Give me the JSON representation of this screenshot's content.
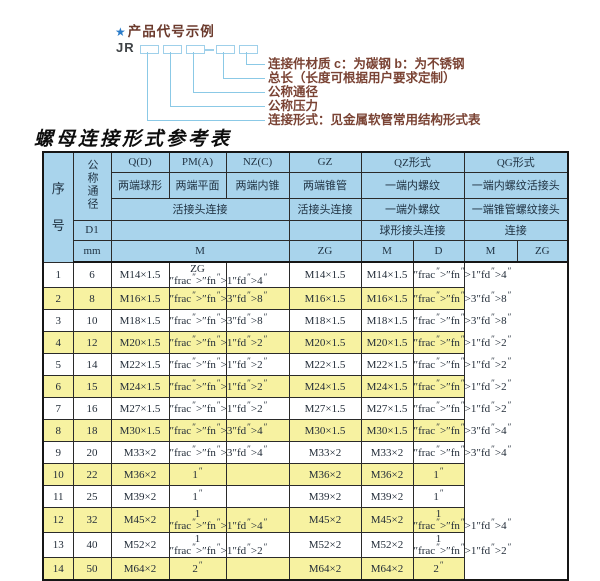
{
  "diagram": {
    "star": "★",
    "heading": "产品代号示例",
    "prefix": "JR",
    "labels": [
      "连接件材质  c：为碳钢  b：为不锈钢",
      "总长（长度可根据用户要求定制）",
      "公称通径",
      "公称压力",
      "连接形式：见金属软管常用结构形式表"
    ]
  },
  "table": {
    "title": "螺母连接形式参考表",
    "header": {
      "seq": "序号",
      "dn": "公称通径",
      "d1": "D1",
      "mm": "mm",
      "q": "Q(D)",
      "pm": "PM(A)",
      "nz": "NZ(C)",
      "gz": "GZ",
      "qz": "QZ形式",
      "qg": "QG形式",
      "q_sub": "两端球形",
      "pm_sub": "两端平面",
      "nz_sub": "两端内锥",
      "gz_sub": "两端锥管",
      "qz_sub1": "一端内螺纹",
      "qg_sub1": "一端内螺纹活接头",
      "union_conn": "活接头连接",
      "gz_conn": "活接头连接",
      "qz_sub2": "一端外螺纹",
      "qg_sub2": "一端锥管螺纹接头",
      "qz_sub3": "球形接头连接",
      "qg_sub3": "连接",
      "m_wide": "M",
      "zg_col": "ZG",
      "qz_m": "M",
      "qz_d": "D",
      "qg_m": "M",
      "qg_zg": "ZG"
    },
    "rows": [
      [
        "1",
        "6",
        "M14×1.5",
        "ZG 1/4\"",
        "",
        "M14×1.5",
        "M14×1.5",
        "1/4\""
      ],
      [
        "2",
        "8",
        "M16×1.5",
        "3/8\"",
        "",
        "M16×1.5",
        "M16×1.5",
        "3/8\""
      ],
      [
        "3",
        "10",
        "M18×1.5",
        "3/8\"",
        "",
        "M18×1.5",
        "M18×1.5",
        "3/8\""
      ],
      [
        "4",
        "12",
        "M20×1.5",
        "1/2\"",
        "",
        "M20×1.5",
        "M20×1.5",
        "1/2\""
      ],
      [
        "5",
        "14",
        "M22×1.5",
        "1/2\"",
        "",
        "M22×1.5",
        "M22×1.5",
        "1/2\""
      ],
      [
        "6",
        "15",
        "M24×1.5",
        "1/2\"",
        "",
        "M24×1.5",
        "M24×1.5",
        "1/2\""
      ],
      [
        "7",
        "16",
        "M27×1.5",
        "1/2\"",
        "",
        "M27×1.5",
        "M27×1.5",
        "1/2\""
      ],
      [
        "8",
        "18",
        "M30×1.5",
        "3/4\"",
        "",
        "M30×1.5",
        "M30×1.5",
        "3/4\""
      ],
      [
        "9",
        "20",
        "M33×2",
        "3/4\"",
        "",
        "M33×2",
        "M33×2",
        "3/4\""
      ],
      [
        "10",
        "22",
        "M36×2",
        "1\"",
        "",
        "M36×2",
        "M36×2",
        "1\""
      ],
      [
        "11",
        "25",
        "M39×2",
        "1\"",
        "",
        "M39×2",
        "M39×2",
        "1\""
      ],
      [
        "12",
        "32",
        "M45×2",
        "1 1/4\"",
        "",
        "M45×2",
        "M45×2",
        "1 1/4\""
      ],
      [
        "13",
        "40",
        "M52×2",
        "1 1/2\"",
        "",
        "M52×2",
        "M52×2",
        "1 1/2\""
      ],
      [
        "14",
        "50",
        "M64×2",
        "2\"",
        "",
        "M64×2",
        "M64×2",
        "2\""
      ]
    ]
  },
  "colors": {
    "header_bg": "#a9d4ec",
    "row_alt_bg": "#f7f2a1",
    "connector": "#8bc9e6",
    "label_text": "#7a4334",
    "star": "#2b7cc9"
  }
}
